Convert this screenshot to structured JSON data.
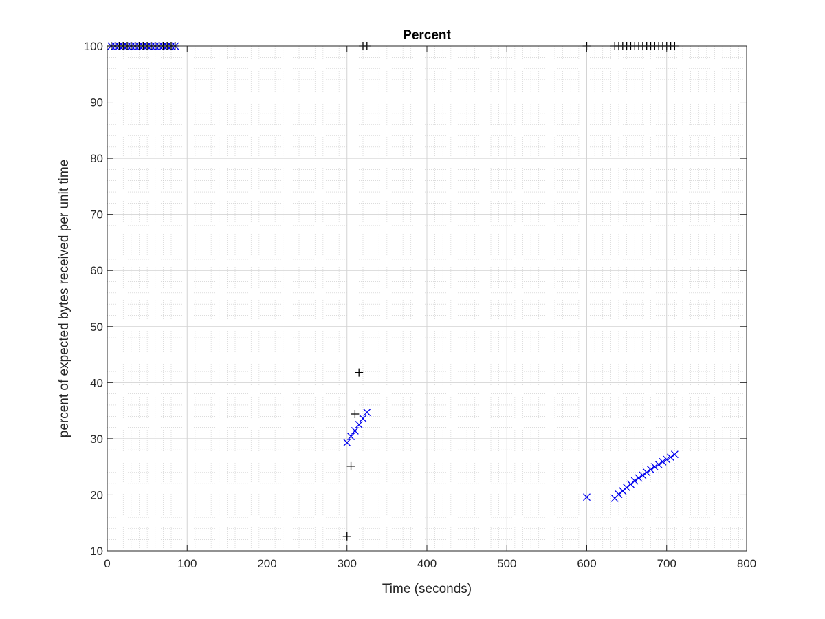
{
  "chart_data": {
    "type": "scatter",
    "title": "Percent",
    "xlabel": "Time (seconds)",
    "ylabel": "percent of expected bytes received per unit time",
    "xlim": [
      0,
      800
    ],
    "ylim": [
      10,
      100
    ],
    "xticks": [
      "0",
      "100",
      "200",
      "300",
      "400",
      "500",
      "600",
      "700",
      "800"
    ],
    "yticks": [
      "10",
      "20",
      "30",
      "40",
      "50",
      "60",
      "70",
      "80",
      "90",
      "100"
    ],
    "grid": true,
    "minor_grid": true,
    "colors": {
      "series_x": "#0000ee",
      "series_plus": "#000000",
      "major_grid": "#d4d4d4",
      "minor_grid": "#c8c8c8",
      "axes": "#262626"
    },
    "series": [
      {
        "marker": "x",
        "points": [
          {
            "x": 5,
            "y": 100
          },
          {
            "x": 10,
            "y": 100
          },
          {
            "x": 15,
            "y": 100
          },
          {
            "x": 20,
            "y": 100
          },
          {
            "x": 25,
            "y": 100
          },
          {
            "x": 30,
            "y": 100
          },
          {
            "x": 35,
            "y": 100
          },
          {
            "x": 40,
            "y": 100
          },
          {
            "x": 45,
            "y": 100
          },
          {
            "x": 50,
            "y": 100
          },
          {
            "x": 55,
            "y": 100
          },
          {
            "x": 60,
            "y": 100
          },
          {
            "x": 65,
            "y": 100
          },
          {
            "x": 70,
            "y": 100
          },
          {
            "x": 75,
            "y": 100
          },
          {
            "x": 80,
            "y": 100
          },
          {
            "x": 85,
            "y": 100
          },
          {
            "x": 300,
            "y": 29.3
          },
          {
            "x": 305,
            "y": 30.4
          },
          {
            "x": 310,
            "y": 31.4
          },
          {
            "x": 315,
            "y": 32.5
          },
          {
            "x": 320,
            "y": 33.6
          },
          {
            "x": 325,
            "y": 34.7
          },
          {
            "x": 600,
            "y": 19.6
          },
          {
            "x": 635,
            "y": 19.4
          },
          {
            "x": 640,
            "y": 20.1
          },
          {
            "x": 645,
            "y": 20.7
          },
          {
            "x": 650,
            "y": 21.3
          },
          {
            "x": 655,
            "y": 21.9
          },
          {
            "x": 660,
            "y": 22.5
          },
          {
            "x": 665,
            "y": 23.0
          },
          {
            "x": 670,
            "y": 23.5
          },
          {
            "x": 675,
            "y": 24.0
          },
          {
            "x": 680,
            "y": 24.5
          },
          {
            "x": 685,
            "y": 25.0
          },
          {
            "x": 690,
            "y": 25.4
          },
          {
            "x": 695,
            "y": 25.9
          },
          {
            "x": 700,
            "y": 26.3
          },
          {
            "x": 705,
            "y": 26.7
          },
          {
            "x": 710,
            "y": 27.2
          }
        ]
      },
      {
        "marker": "+",
        "points": [
          {
            "x": 5,
            "y": 100
          },
          {
            "x": 10,
            "y": 100
          },
          {
            "x": 15,
            "y": 100
          },
          {
            "x": 20,
            "y": 100
          },
          {
            "x": 25,
            "y": 100
          },
          {
            "x": 30,
            "y": 100
          },
          {
            "x": 35,
            "y": 100
          },
          {
            "x": 40,
            "y": 100
          },
          {
            "x": 45,
            "y": 100
          },
          {
            "x": 50,
            "y": 100
          },
          {
            "x": 55,
            "y": 100
          },
          {
            "x": 60,
            "y": 100
          },
          {
            "x": 65,
            "y": 100
          },
          {
            "x": 70,
            "y": 100
          },
          {
            "x": 75,
            "y": 100
          },
          {
            "x": 80,
            "y": 100
          },
          {
            "x": 85,
            "y": 100
          },
          {
            "x": 300,
            "y": 12.6
          },
          {
            "x": 305,
            "y": 25.1
          },
          {
            "x": 310,
            "y": 34.4
          },
          {
            "x": 315,
            "y": 41.8
          },
          {
            "x": 320,
            "y": 100
          },
          {
            "x": 325,
            "y": 100
          },
          {
            "x": 600,
            "y": 100
          },
          {
            "x": 635,
            "y": 100
          },
          {
            "x": 640,
            "y": 100
          },
          {
            "x": 645,
            "y": 100
          },
          {
            "x": 650,
            "y": 100
          },
          {
            "x": 655,
            "y": 100
          },
          {
            "x": 660,
            "y": 100
          },
          {
            "x": 665,
            "y": 100
          },
          {
            "x": 670,
            "y": 100
          },
          {
            "x": 675,
            "y": 100
          },
          {
            "x": 680,
            "y": 100
          },
          {
            "x": 685,
            "y": 100
          },
          {
            "x": 690,
            "y": 100
          },
          {
            "x": 695,
            "y": 100
          },
          {
            "x": 700,
            "y": 100
          },
          {
            "x": 705,
            "y": 100
          },
          {
            "x": 710,
            "y": 100
          }
        ]
      }
    ]
  }
}
